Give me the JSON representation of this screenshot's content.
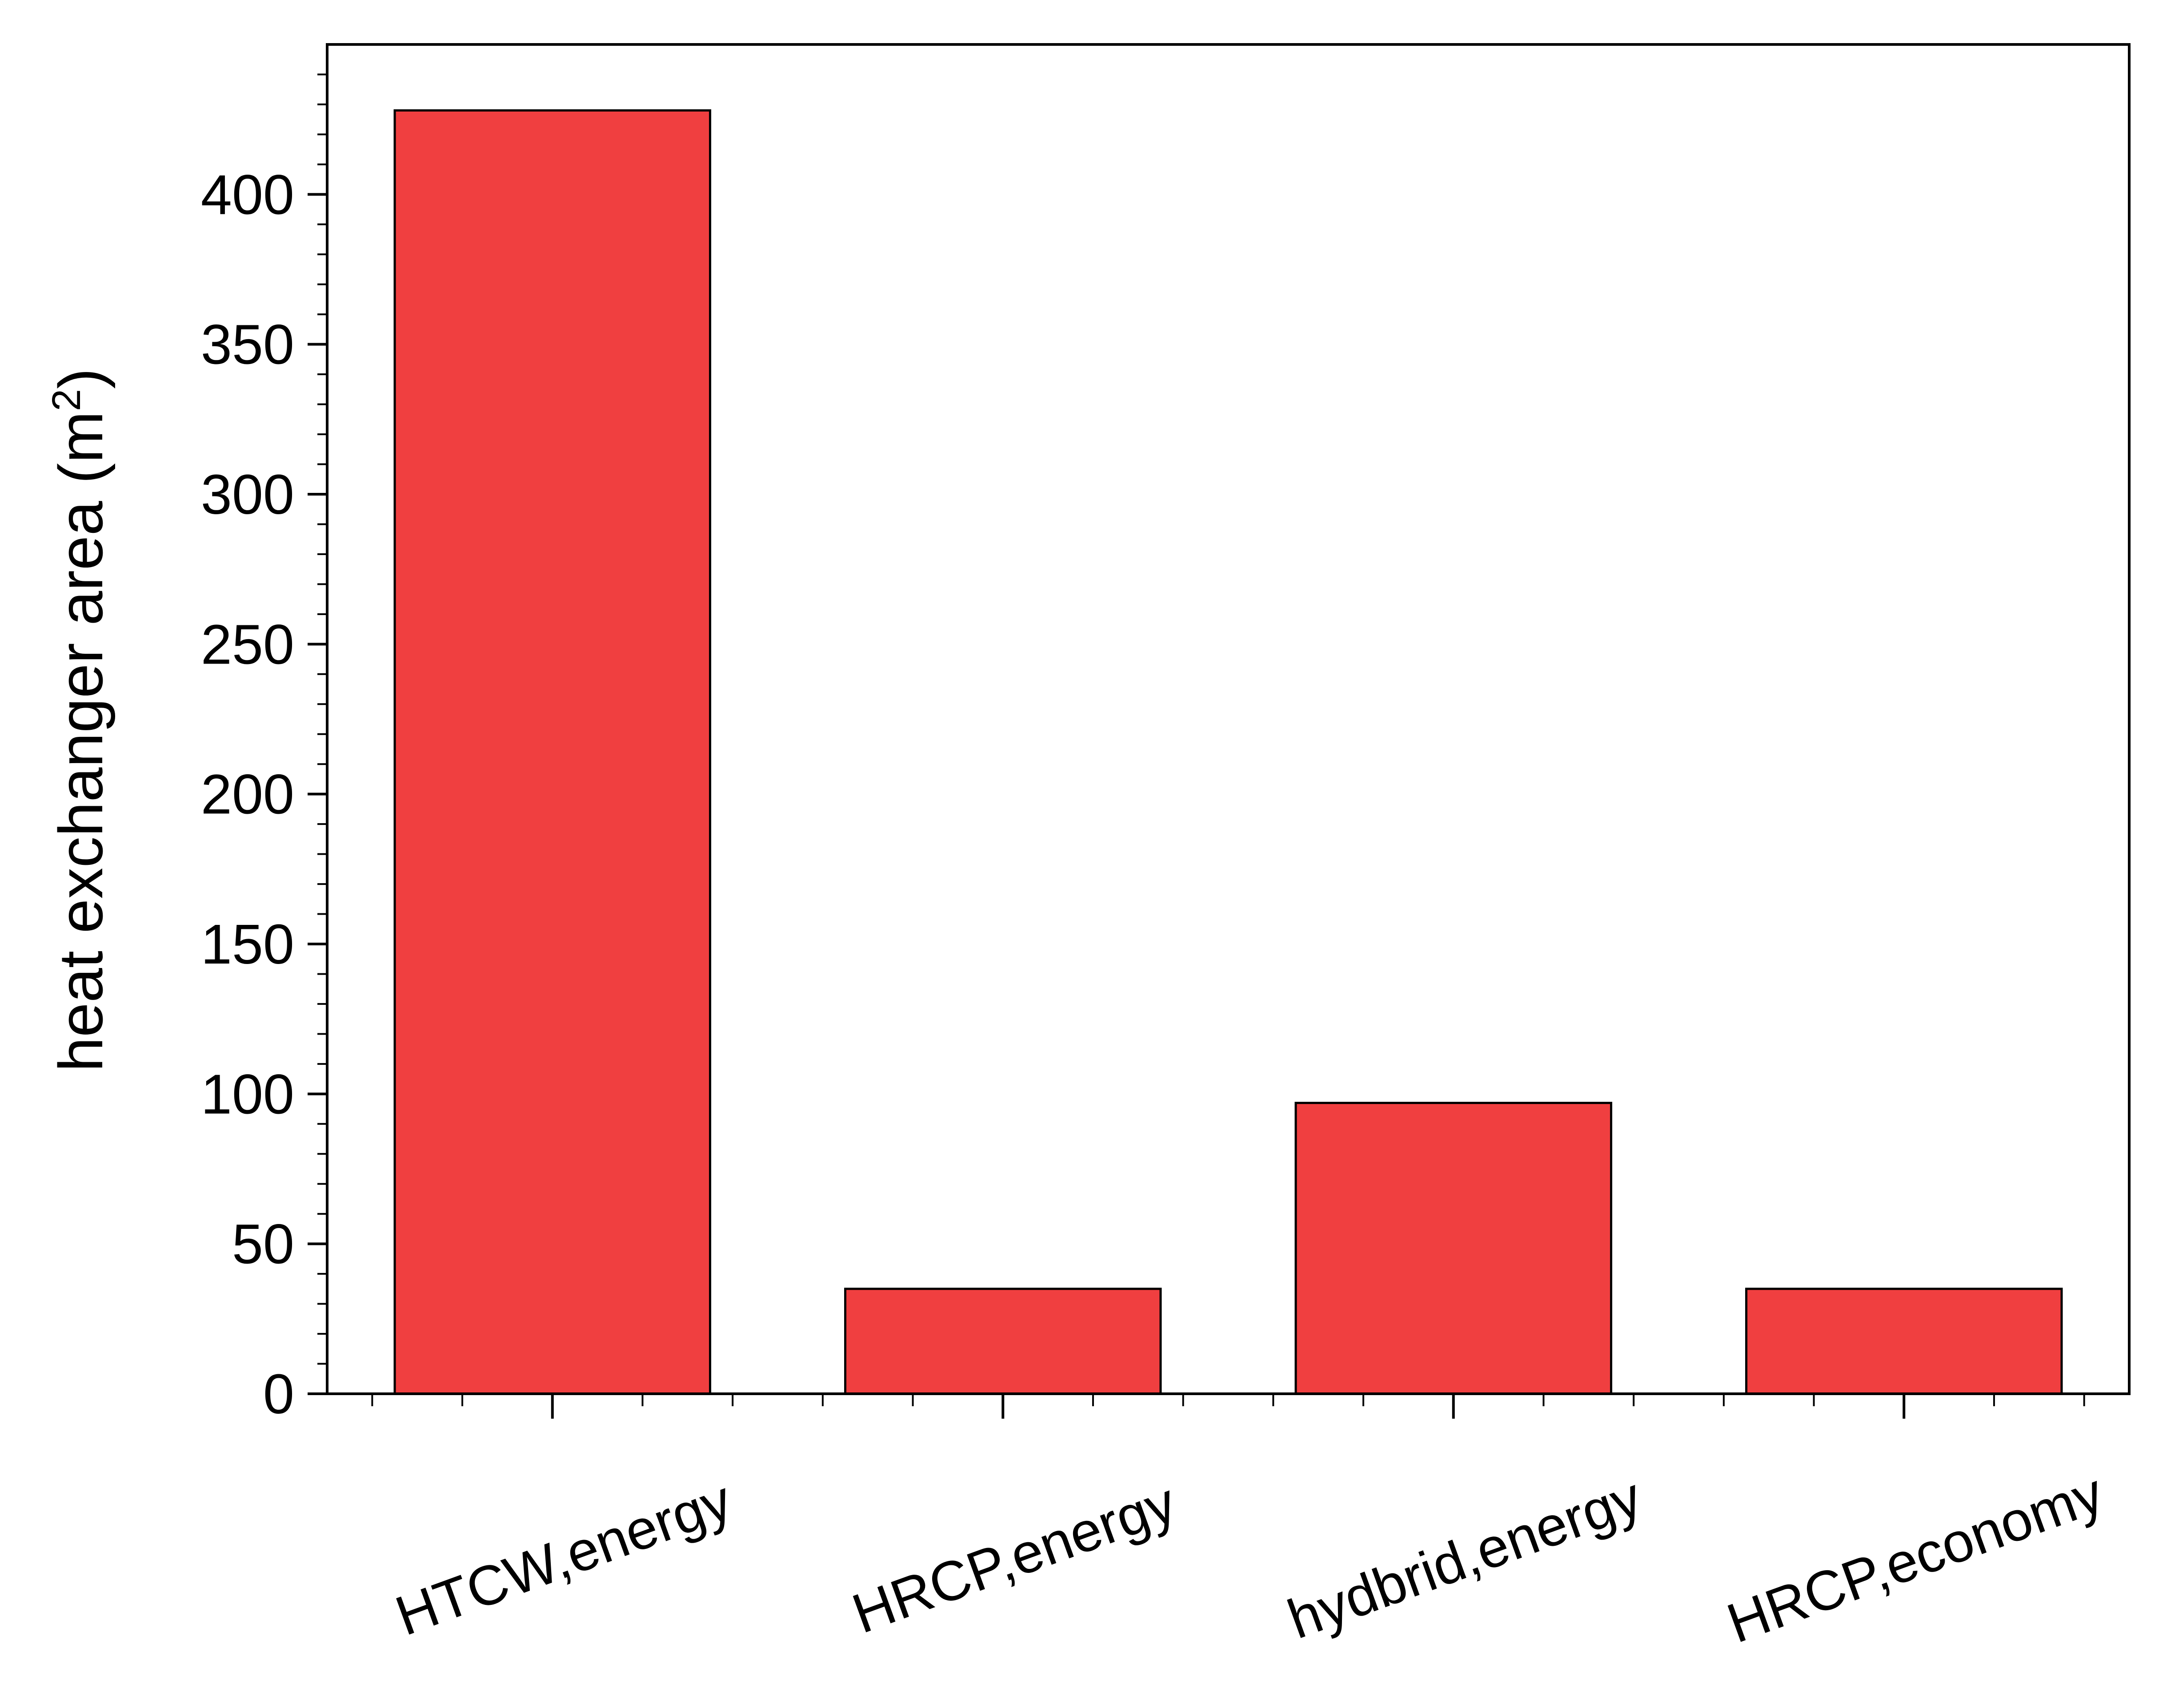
{
  "chart_data": {
    "type": "bar",
    "title": "",
    "xlabel": "",
    "ylabel": "heat exchanger area (m",
    "ylabel_sup": "2",
    "ylabel_close": ")",
    "categories": [
      "HTCW,energy",
      "HRCP,energy",
      "hydbrid,energy",
      "HRCP,economy"
    ],
    "values": [
      428,
      35,
      97,
      35
    ],
    "ylim": [
      0,
      450
    ],
    "yticks": [
      0,
      50,
      100,
      150,
      200,
      250,
      300,
      350,
      400
    ],
    "grid": false,
    "legend": "none",
    "bar_color": "#f03f40",
    "edge_color": "#000000"
  }
}
